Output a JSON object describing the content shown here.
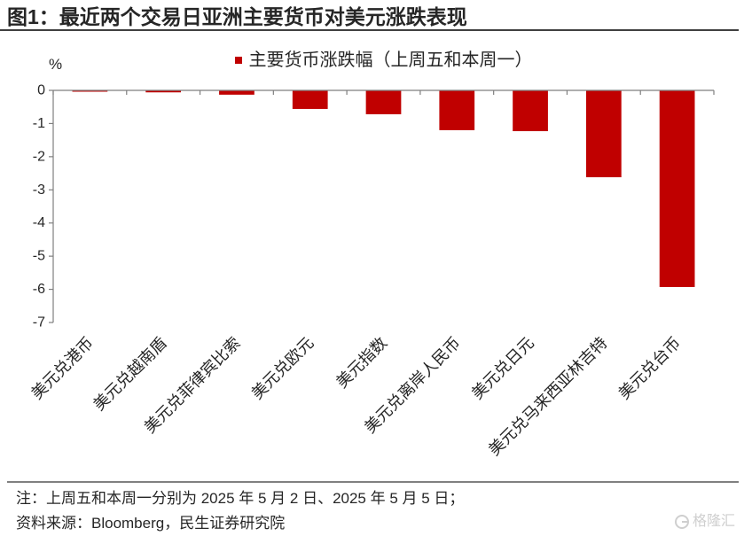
{
  "chart_data": {
    "type": "bar",
    "title": "图1：最近两个交易日亚洲主要货币对美元涨跌表现",
    "ylabel": "%",
    "categories": [
      "美元兑港币",
      "美元兑越南盾",
      "美元兑菲律宾比索",
      "美元兑欧元",
      "美元指数",
      "美元兑离岸人民币",
      "美元兑日元",
      "美元兑马来西亚林吉特",
      "美元兑台币"
    ],
    "series": [
      {
        "name": "主要货币涨跌幅（上周五和本周一）",
        "color": "#C00000",
        "values": [
          -0.04,
          -0.06,
          -0.13,
          -0.56,
          -0.72,
          -1.2,
          -1.23,
          -2.62,
          -5.93
        ]
      }
    ],
    "ylim": [
      -7,
      0
    ],
    "yticks": [
      0,
      -1,
      -2,
      -3,
      -4,
      -5,
      -6,
      -7
    ],
    "grid": false,
    "legend": "top-center",
    "axis_color": "#7f7f7f"
  },
  "notes": {
    "note": "注：上周五和本周一分别为 2025 年 5 月 2 日、2025 年 5 月 5 日；",
    "source": "资料来源：Bloomberg，民生证券研究院"
  },
  "watermark": {
    "text": "格隆汇",
    "icon": "gelonghui-logo-icon",
    "color": "#cfcfcf"
  }
}
